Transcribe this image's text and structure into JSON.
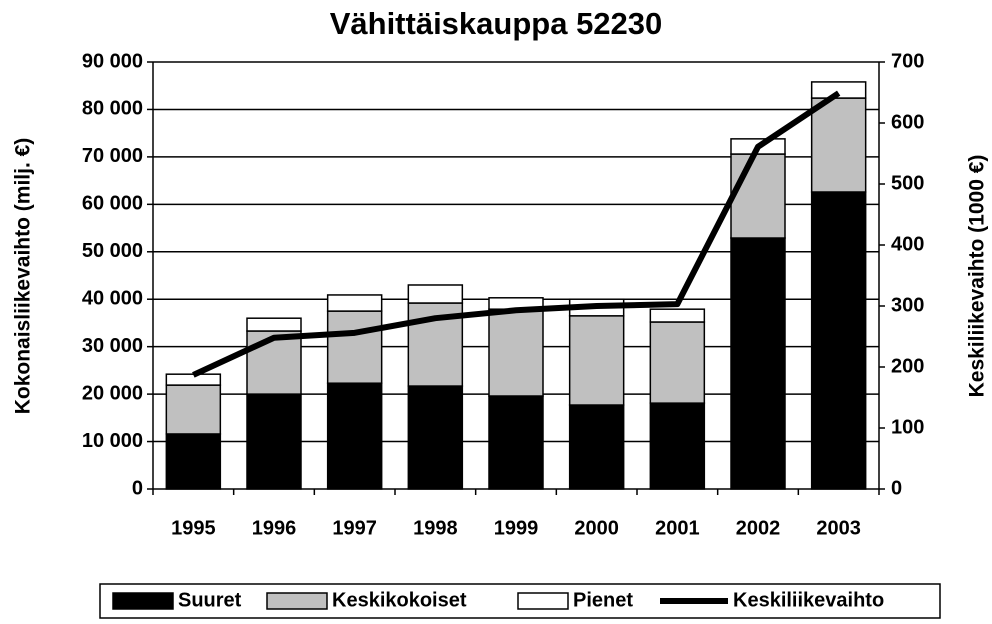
{
  "chart_data": {
    "type": "bar",
    "title": "Vähittäiskauppa 52230",
    "y_label": "Kokonaisliikevaihto (milj. €)",
    "y2_label": "Keskiliikevaihto (1000 €)",
    "categories": [
      "1995",
      "1996",
      "1997",
      "1998",
      "1999",
      "2000",
      "2001",
      "2002",
      "2003"
    ],
    "stacked": true,
    "series": [
      {
        "name": "Suuret",
        "color": "#000000",
        "values": [
          11600,
          20000,
          22300,
          21700,
          19600,
          17700,
          18100,
          52900,
          62600
        ]
      },
      {
        "name": "Keskikokoiset",
        "color": "#c0c0c0",
        "values": [
          10300,
          13300,
          15200,
          17500,
          18300,
          18800,
          17100,
          17700,
          19800
        ]
      },
      {
        "name": "Pienet",
        "color": "#ffffff",
        "values": [
          2300,
          2700,
          3400,
          3800,
          2400,
          3500,
          2700,
          3200,
          3400
        ]
      },
      {
        "name": "Keskiliikevaihto",
        "type": "line",
        "axis": "y2",
        "color": "#000000",
        "values": [
          187,
          248,
          256,
          280,
          293,
          300,
          303,
          561,
          649
        ]
      }
    ],
    "ylim": [
      0,
      90000
    ],
    "yticks": [
      {
        "value": 0,
        "label": "0"
      },
      {
        "value": 10000,
        "label": "10 000"
      },
      {
        "value": 20000,
        "label": "20 000"
      },
      {
        "value": 30000,
        "label": "30 000"
      },
      {
        "value": 40000,
        "label": "40 000"
      },
      {
        "value": 50000,
        "label": "50 000"
      },
      {
        "value": 60000,
        "label": "60 000"
      },
      {
        "value": 70000,
        "label": "70 000"
      },
      {
        "value": 80000,
        "label": "80 000"
      },
      {
        "value": 90000,
        "label": "90 000"
      }
    ],
    "y2lim": [
      0,
      700
    ],
    "y2ticks": [
      0,
      100,
      200,
      300,
      400,
      500,
      600,
      700
    ],
    "grid": true,
    "legend": "bottom"
  }
}
